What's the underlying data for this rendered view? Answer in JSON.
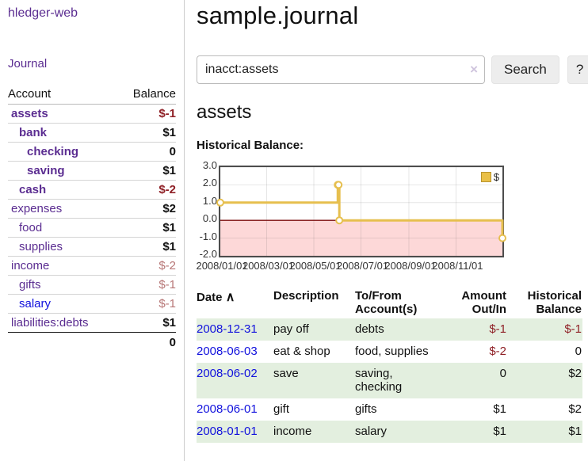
{
  "sidebar": {
    "brand": "hledger-web",
    "nav": {
      "journal": "Journal"
    },
    "accounts_table": {
      "col_account": "Account",
      "col_balance": "Balance",
      "rows": [
        {
          "name": "assets",
          "balance": "$-1"
        },
        {
          "name": "bank",
          "balance": "$1"
        },
        {
          "name": "checking",
          "balance": "0"
        },
        {
          "name": "saving",
          "balance": "$1"
        },
        {
          "name": "cash",
          "balance": "$-2"
        },
        {
          "name": "expenses",
          "balance": "$2"
        },
        {
          "name": "food",
          "balance": "$1"
        },
        {
          "name": "supplies",
          "balance": "$1"
        },
        {
          "name": "income",
          "balance": "$-2"
        },
        {
          "name": "gifts",
          "balance": "$-1"
        },
        {
          "name": "salary",
          "balance": "$-1"
        },
        {
          "name": "liabilities:debts",
          "balance": "$1"
        }
      ],
      "total": "0"
    }
  },
  "header": {
    "title": "sample.journal"
  },
  "search": {
    "query_value": "inacct:assets",
    "clear_icon": "×",
    "search_button": "Search",
    "help_button": "?"
  },
  "account_view": {
    "heading": "assets",
    "chart_title": "Historical Balance:"
  },
  "chart_data": {
    "type": "line",
    "title": "Historical Balance",
    "step": true,
    "legend": [
      {
        "label": "$",
        "color": "#e9c049"
      }
    ],
    "x_start": "2008-01-01",
    "x_end": "2008-12-31",
    "points": [
      [
        "2008-01-01",
        1
      ],
      [
        "2008-06-01",
        2
      ],
      [
        "2008-06-02",
        2
      ],
      [
        "2008-06-03",
        0
      ],
      [
        "2008-12-31",
        -1
      ]
    ],
    "ylim": [
      -2,
      3
    ],
    "yticks": [
      "3.0",
      "2.0",
      "1.0",
      "0.0",
      "-1.0",
      "-2.0"
    ],
    "xticks": [
      "2008/01/01",
      "2008/03/01",
      "2008/05/01",
      "2008/07/01",
      "2008/09/01",
      "2008/11/01"
    ],
    "colors": {
      "line": "#e6bf4e",
      "marker_fill": "#ffffff",
      "negative_fill": "#fdd8d8",
      "zero_line": "#7d0e0e",
      "border": "#4d4d4d"
    }
  },
  "register": {
    "columns": {
      "date": "Date",
      "sort_indicator": "∧",
      "description": "Description",
      "tofrom": "To/From\nAccount(s)",
      "amount": "Amount\nOut/In",
      "balance": "Historical\nBalance"
    },
    "rows": [
      {
        "date": "2008-12-31",
        "description": "pay off",
        "tofrom": "debts",
        "amount": "$-1",
        "balance": "$-1"
      },
      {
        "date": "2008-06-03",
        "description": "eat & shop",
        "tofrom": "food, supplies",
        "amount": "$-2",
        "balance": "0"
      },
      {
        "date": "2008-06-02",
        "description": "save",
        "tofrom": "saving,\nchecking",
        "amount": "0",
        "balance": "$2"
      },
      {
        "date": "2008-06-01",
        "description": "gift",
        "tofrom": "gifts",
        "amount": "$1",
        "balance": "$2"
      },
      {
        "date": "2008-01-01",
        "description": "income",
        "tofrom": "salary",
        "amount": "$1",
        "balance": "$1"
      }
    ]
  }
}
